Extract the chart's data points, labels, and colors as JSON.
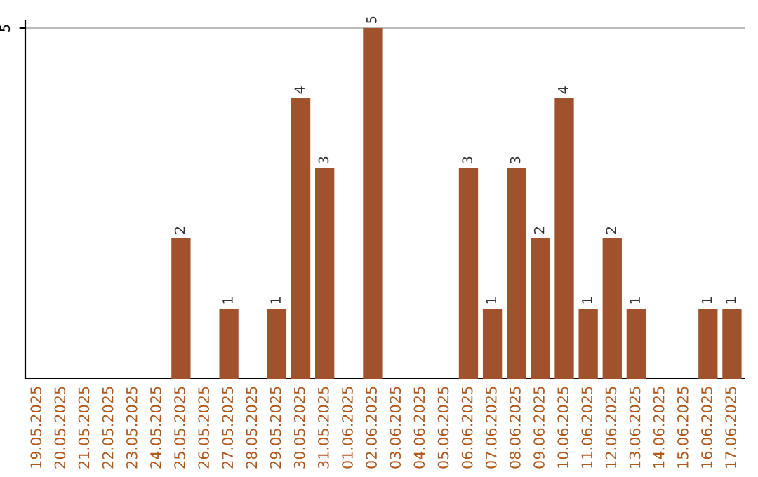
{
  "chart_data": {
    "type": "bar",
    "categories": [
      "19.05.2025",
      "20.05.2025",
      "21.05.2025",
      "22.05.2025",
      "23.05.2025",
      "24.05.2025",
      "25.05.2025",
      "26.05.2025",
      "27.05.2025",
      "28.05.2025",
      "29.05.2025",
      "30.05.2025",
      "31.05.2025",
      "01.06.2025",
      "02.06.2025",
      "03.06.2025",
      "04.06.2025",
      "05.06.2025",
      "06.06.2025",
      "07.06.2025",
      "08.06.2025",
      "09.06.2025",
      "10.06.2025",
      "11.06.2025",
      "12.06.2025",
      "13.06.2025",
      "14.06.2025",
      "15.06.2025",
      "16.06.2025",
      "17.06.2025"
    ],
    "values": [
      0,
      0,
      0,
      0,
      0,
      0,
      2,
      0,
      1,
      0,
      1,
      4,
      3,
      0,
      5,
      0,
      0,
      0,
      3,
      1,
      3,
      2,
      4,
      1,
      2,
      1,
      0,
      0,
      1,
      1
    ],
    "value_labels": [
      null,
      null,
      null,
      null,
      null,
      null,
      "2",
      null,
      "1",
      null,
      "1",
      "4",
      "3",
      null,
      "5",
      null,
      null,
      null,
      "3",
      "1",
      "3",
      "2",
      "4",
      "1",
      "2",
      "1",
      null,
      null,
      "1",
      "1"
    ],
    "color": "#a0522d",
    "ylim": [
      0,
      5.1
    ],
    "yticks": [
      5
    ],
    "grid": "y"
  }
}
